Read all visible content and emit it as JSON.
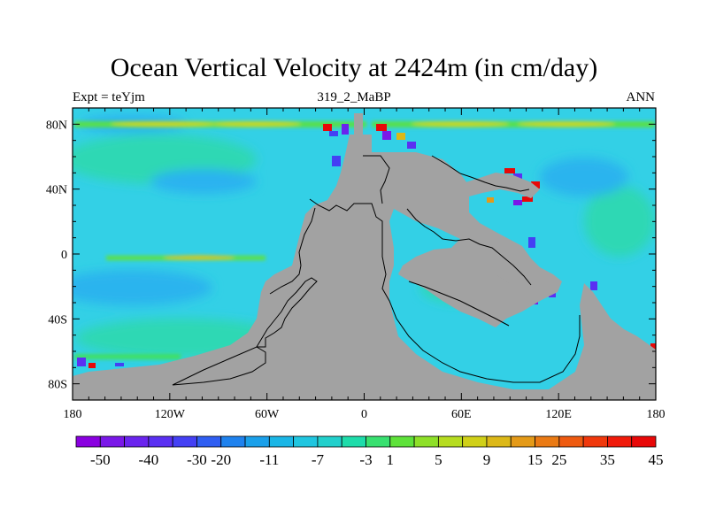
{
  "figure": {
    "title": "Ocean Vertical Velocity at 2424m (in cm/day)",
    "left_label": "Expt = teYjm",
    "center_label": "319_2_MaBP",
    "right_label": "ANN"
  },
  "axes": {
    "x_ticks": [
      {
        "value": -180,
        "label": "180"
      },
      {
        "value": -120,
        "label": "120W"
      },
      {
        "value": -60,
        "label": "60W"
      },
      {
        "value": 0,
        "label": "0"
      },
      {
        "value": 60,
        "label": "60E"
      },
      {
        "value": 120,
        "label": "120E"
      },
      {
        "value": 180,
        "label": "180"
      }
    ],
    "y_ticks": [
      {
        "value": 80,
        "label": "80N"
      },
      {
        "value": 40,
        "label": "40N"
      },
      {
        "value": 0,
        "label": "0"
      },
      {
        "value": -40,
        "label": "40S"
      },
      {
        "value": -80,
        "label": "80S"
      }
    ],
    "xlim": [
      -180,
      180
    ],
    "ylim": [
      -90,
      90
    ]
  },
  "colorbar": {
    "colors": [
      "#8a00e0",
      "#7a18e8",
      "#6a24ee",
      "#5a30f2",
      "#4440f4",
      "#2f5ef2",
      "#1f82ee",
      "#1aa0ea",
      "#1ab6e6",
      "#20c6e0",
      "#22d0cc",
      "#1edcaa",
      "#38e070",
      "#5ee23a",
      "#8ee028",
      "#b6dc20",
      "#d0d018",
      "#dcb818",
      "#e49a18",
      "#ea7a14",
      "#ee5a10",
      "#f0380c",
      "#f01a0a",
      "#e80808"
    ],
    "labels": [
      "-50",
      "-40",
      "-30",
      "-20",
      "-11",
      "-7",
      "-3",
      "1",
      "5",
      "9",
      "15",
      "25",
      "35",
      "45"
    ]
  },
  "colors": {
    "ocean_base": "#33d0e6",
    "land": "#a2a2a2"
  }
}
